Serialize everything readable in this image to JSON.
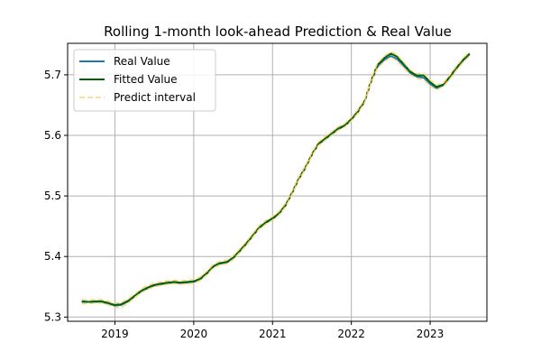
{
  "chart_data": {
    "type": "line",
    "title": "Rolling 1-month look-ahead Prediction & Real Value",
    "xlabel": "",
    "ylabel": "",
    "xlim": [
      2018.4,
      2023.72
    ],
    "ylim": [
      5.293,
      5.752
    ],
    "x_ticks": [
      2019,
      2020,
      2021,
      2022,
      2023
    ],
    "x_tick_labels": [
      "2019",
      "2020",
      "2021",
      "2022",
      "2023"
    ],
    "y_ticks": [
      5.3,
      5.4,
      5.5,
      5.6,
      5.7
    ],
    "y_tick_labels": [
      "5.3",
      "5.4",
      "5.5",
      "5.6",
      "5.7"
    ],
    "grid": true,
    "legend_position": "upper-left",
    "x": [
      2018.58,
      2018.67,
      2018.75,
      2018.83,
      2018.92,
      2019.0,
      2019.08,
      2019.17,
      2019.25,
      2019.33,
      2019.42,
      2019.5,
      2019.58,
      2019.67,
      2019.75,
      2019.83,
      2019.92,
      2020.0,
      2020.08,
      2020.17,
      2020.25,
      2020.33,
      2020.42,
      2020.5,
      2020.58,
      2020.67,
      2020.75,
      2020.83,
      2020.92,
      2021.0,
      2021.08,
      2021.17,
      2021.25,
      2021.33,
      2021.42,
      2021.5,
      2021.58,
      2021.67,
      2021.75,
      2021.83,
      2021.92,
      2022.0,
      2022.08,
      2022.17,
      2022.25,
      2022.33,
      2022.42,
      2022.5,
      2022.58,
      2022.67,
      2022.75,
      2022.83,
      2022.92,
      2023.0,
      2023.08,
      2023.17,
      2023.25,
      2023.33,
      2023.42,
      2023.5
    ],
    "series": [
      {
        "name": "Real Value",
        "color": "#1f77b4",
        "style": "solid",
        "values": [
          5.325,
          5.325,
          5.325,
          5.325,
          5.322,
          5.319,
          5.32,
          5.326,
          5.334,
          5.342,
          5.348,
          5.352,
          5.354,
          5.356,
          5.357,
          5.356,
          5.357,
          5.358,
          5.362,
          5.372,
          5.383,
          5.388,
          5.39,
          5.397,
          5.408,
          5.421,
          5.434,
          5.447,
          5.456,
          5.462,
          5.47,
          5.485,
          5.505,
          5.527,
          5.547,
          5.568,
          5.585,
          5.594,
          5.602,
          5.61,
          5.616,
          5.626,
          5.638,
          5.656,
          5.688,
          5.713,
          5.725,
          5.731,
          5.726,
          5.714,
          5.703,
          5.697,
          5.695,
          5.685,
          5.678,
          5.683,
          5.696,
          5.71,
          5.724,
          5.734
        ]
      },
      {
        "name": "Fitted Value",
        "color": "#006400",
        "style": "solid",
        "values": [
          5.326,
          5.325,
          5.326,
          5.326,
          5.323,
          5.32,
          5.321,
          5.327,
          5.335,
          5.343,
          5.349,
          5.353,
          5.355,
          5.357,
          5.358,
          5.357,
          5.358,
          5.359,
          5.363,
          5.373,
          5.384,
          5.389,
          5.391,
          5.398,
          5.409,
          5.422,
          5.435,
          5.448,
          5.457,
          5.463,
          5.471,
          5.486,
          5.506,
          5.528,
          5.548,
          5.569,
          5.586,
          5.595,
          5.603,
          5.611,
          5.617,
          5.627,
          5.639,
          5.657,
          5.69,
          5.716,
          5.728,
          5.735,
          5.73,
          5.717,
          5.705,
          5.699,
          5.699,
          5.688,
          5.68,
          5.684,
          5.697,
          5.711,
          5.725,
          5.735
        ]
      },
      {
        "name": "Predict interval",
        "color": "#ffd27f",
        "style": "dashed",
        "values": [
          5.322,
          5.322,
          5.323,
          5.323,
          5.32,
          5.316,
          5.316,
          5.323,
          5.332,
          5.34,
          5.346,
          5.35,
          5.352,
          5.354,
          5.355,
          5.354,
          5.355,
          5.356,
          5.36,
          5.37,
          5.381,
          5.386,
          5.388,
          5.395,
          5.406,
          5.419,
          5.432,
          5.445,
          5.454,
          5.46,
          5.468,
          5.483,
          5.503,
          5.525,
          5.545,
          5.566,
          5.583,
          5.592,
          5.6,
          5.608,
          5.614,
          5.624,
          5.636,
          5.654,
          5.686,
          5.711,
          5.722,
          5.729,
          5.723,
          5.711,
          5.7,
          5.694,
          5.692,
          5.682,
          5.675,
          5.681,
          5.693,
          5.707,
          5.721,
          5.731
        ]
      },
      {
        "name": "",
        "color": "#ffd27f",
        "style": "dashed",
        "values": [
          5.329,
          5.328,
          5.329,
          5.329,
          5.326,
          5.323,
          5.324,
          5.33,
          5.338,
          5.346,
          5.352,
          5.356,
          5.358,
          5.36,
          5.361,
          5.36,
          5.361,
          5.362,
          5.366,
          5.376,
          5.387,
          5.392,
          5.394,
          5.401,
          5.412,
          5.425,
          5.438,
          5.451,
          5.46,
          5.466,
          5.474,
          5.489,
          5.509,
          5.531,
          5.551,
          5.572,
          5.589,
          5.598,
          5.606,
          5.614,
          5.62,
          5.63,
          5.642,
          5.66,
          5.693,
          5.719,
          5.731,
          5.738,
          5.733,
          5.72,
          5.708,
          5.702,
          5.702,
          5.691,
          5.683,
          5.687,
          5.7,
          5.714,
          5.728,
          5.738
        ]
      }
    ]
  }
}
